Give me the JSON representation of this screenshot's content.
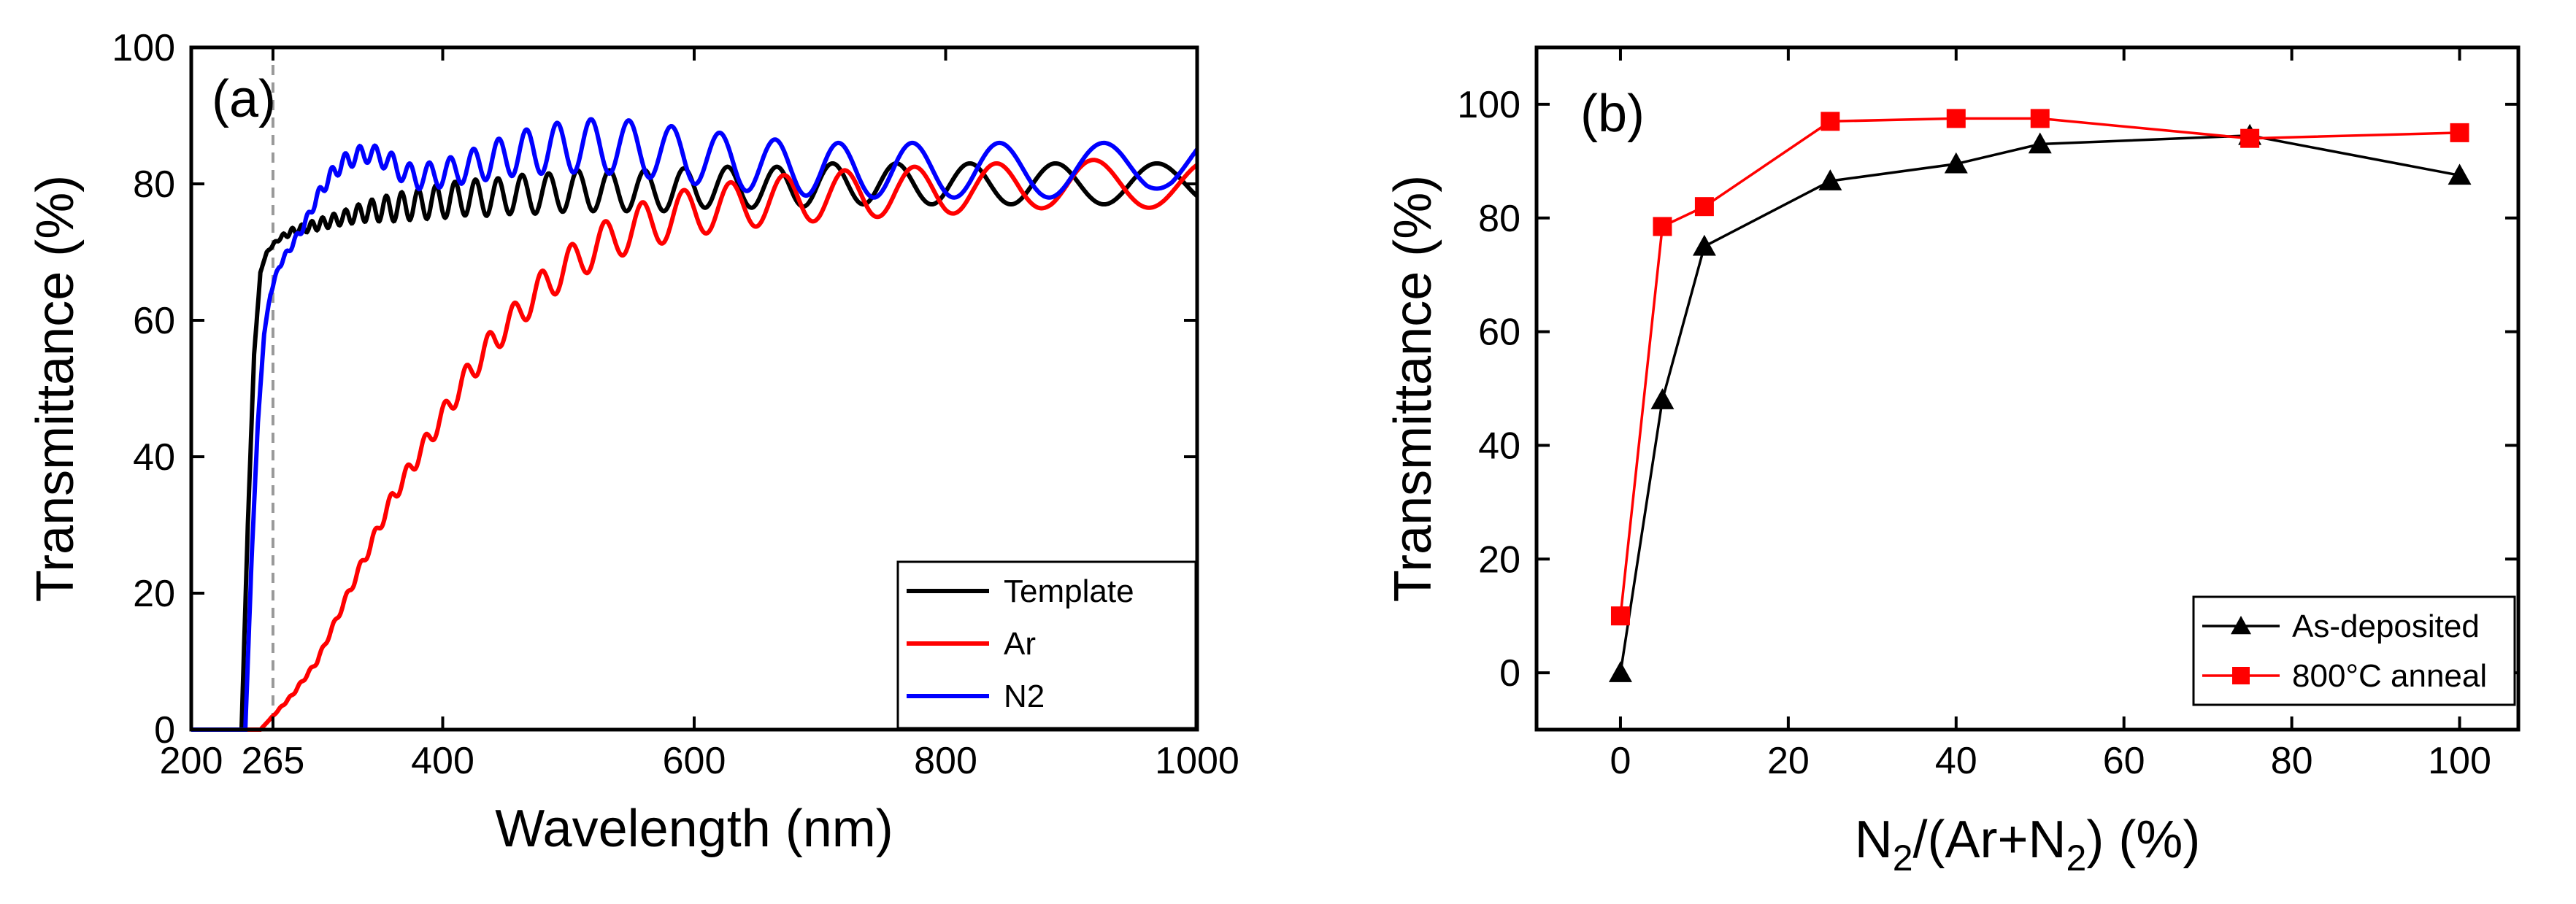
{
  "chart_data": [
    {
      "id": "a",
      "type": "line",
      "panel_label": "(a)",
      "xlabel": "Wavelength (nm)",
      "ylabel": "Transmittance (%)",
      "xlim": [
        200,
        1000
      ],
      "ylim": [
        0,
        100
      ],
      "xticks": [
        200,
        265,
        400,
        600,
        800,
        1000
      ],
      "xtick_labels": [
        "200",
        "265",
        "400",
        "600",
        "800",
        "1000"
      ],
      "yticks": [
        0,
        20,
        40,
        60,
        80,
        100
      ],
      "ytick_labels": [
        "0",
        "20",
        "40",
        "60",
        "80",
        "100"
      ],
      "reference_line": {
        "x": 265,
        "style": "dashed",
        "color": "#999999"
      },
      "legend_position": "bottom-right",
      "series": [
        {
          "name": "Template",
          "color": "#000000",
          "x": [
            200,
            240,
            245,
            250,
            255,
            260,
            265,
            270,
            280,
            300,
            320,
            340,
            360,
            380,
            400,
            420,
            440,
            460,
            480,
            500,
            520,
            540,
            560,
            580,
            600,
            620,
            640,
            660,
            680,
            700,
            720,
            740,
            760,
            780,
            800,
            820,
            840,
            860,
            880,
            900,
            920,
            940,
            960,
            980,
            1000
          ],
          "y": [
            0,
            0,
            30,
            55,
            67,
            70,
            71,
            72,
            73,
            74,
            75,
            76,
            76.5,
            77,
            77.5,
            78,
            78,
            78.5,
            78.5,
            79,
            79,
            79,
            79,
            79,
            79.5,
            79.5,
            79.5,
            79.5,
            79.5,
            80,
            80,
            80,
            80,
            80,
            80,
            80,
            80,
            80,
            80,
            80,
            80,
            80,
            80,
            80,
            80
          ],
          "amplitude": [
            0,
            0,
            0,
            0,
            0,
            0,
            0.2,
            0.3,
            0.5,
            0.8,
            1,
            1.5,
            2,
            2.2,
            2.5,
            2.6,
            2.7,
            2.8,
            2.9,
            3,
            3,
            3,
            3,
            3,
            3,
            3,
            3,
            3,
            3,
            3,
            3,
            3,
            3,
            3,
            3,
            3,
            3,
            3,
            3,
            3,
            3,
            3,
            3,
            3,
            3
          ],
          "period_at_400": 15
        },
        {
          "name": "Ar",
          "color": "#ff0000",
          "x": [
            200,
            255,
            260,
            270,
            280,
            300,
            320,
            340,
            360,
            380,
            400,
            420,
            440,
            460,
            480,
            500,
            520,
            540,
            560,
            580,
            600,
            620,
            640,
            660,
            680,
            700,
            720,
            740,
            760,
            780,
            800,
            820,
            840,
            860,
            880,
            900,
            920,
            940,
            960,
            980,
            1000
          ],
          "y": [
            0,
            0,
            1,
            3,
            5,
            10,
            18,
            26,
            34,
            40,
            46,
            52,
            57,
            61,
            65,
            68,
            70.5,
            72.5,
            74,
            75,
            76,
            76.5,
            77,
            77.5,
            78,
            78,
            78.5,
            78.5,
            79,
            79,
            79,
            79.5,
            79.5,
            79.5,
            80,
            80,
            80,
            80,
            80,
            80,
            80
          ],
          "amplitude": [
            0,
            0,
            0,
            0.1,
            0.2,
            0.3,
            0.5,
            0.8,
            1,
            1.3,
            1.5,
            1.8,
            2,
            2.2,
            2.5,
            2.8,
            3,
            3.2,
            3.4,
            3.5,
            3.5,
            3.5,
            3.5,
            3.5,
            3.5,
            3.5,
            3.5,
            3.5,
            3.5,
            3.5,
            3.5,
            3.5,
            3.5,
            3.5,
            3.5,
            3.5,
            3.5,
            3.5,
            3.5,
            3.5,
            3.5
          ],
          "period_at_400": 16
        },
        {
          "name": "N2",
          "color": "#0000ff",
          "x": [
            200,
            243,
            248,
            253,
            258,
            263,
            270,
            280,
            290,
            300,
            310,
            320,
            330,
            340,
            350,
            360,
            370,
            380,
            400,
            420,
            440,
            460,
            480,
            500,
            520,
            540,
            560,
            580,
            600,
            620,
            640,
            660,
            680,
            700,
            720,
            740,
            760,
            780,
            800,
            820,
            840,
            860,
            880,
            900,
            920,
            940,
            960,
            980,
            1000
          ],
          "y": [
            0,
            0,
            25,
            45,
            58,
            64,
            68,
            71,
            74,
            78,
            81,
            83,
            84,
            84.5,
            84,
            83,
            81.5,
            81,
            81.5,
            82.5,
            83.5,
            84.5,
            85,
            85.5,
            85.5,
            85.5,
            85,
            84.5,
            84,
            83.5,
            83,
            82.5,
            82.5,
            82,
            82,
            82,
            82,
            82,
            82,
            82,
            82,
            82,
            82,
            82,
            82,
            82,
            82,
            83,
            85
          ],
          "amplitude": [
            0,
            0,
            0,
            0,
            0,
            0.3,
            0.4,
            0.5,
            0.6,
            0.8,
            1,
            1.2,
            1.3,
            1.4,
            1.4,
            1.5,
            1.6,
            1.8,
            2,
            2.3,
            2.8,
            3.2,
            3.5,
            3.8,
            4,
            4,
            4,
            4,
            4,
            4,
            4,
            4,
            4,
            4,
            4,
            4,
            4,
            4,
            4,
            4,
            4,
            4,
            4,
            4,
            4,
            4,
            3.5,
            3,
            2.5
          ],
          "period_at_400": 17
        }
      ]
    },
    {
      "id": "b",
      "type": "line",
      "panel_label": "(b)",
      "xlabel_main": "N",
      "xlabel_sub1": "2",
      "xlabel_mid": "/(Ar+N",
      "xlabel_sub2": "2",
      "xlabel_end": ") (%)",
      "ylabel": "Transmittance (%)",
      "xlim": [
        -10,
        107
      ],
      "ylim": [
        -10,
        110
      ],
      "xticks": [
        0,
        20,
        40,
        60,
        80,
        100
      ],
      "xtick_labels": [
        "0",
        "20",
        "40",
        "60",
        "80",
        "100"
      ],
      "yticks": [
        0,
        20,
        40,
        60,
        80,
        100
      ],
      "ytick_labels": [
        "0",
        "20",
        "40",
        "60",
        "80",
        "100"
      ],
      "legend_position": "bottom-right",
      "series": [
        {
          "name": "As-deposited",
          "color": "#000000",
          "marker": "triangle",
          "x": [
            0,
            5,
            10,
            25,
            40,
            50,
            75,
            100
          ],
          "y": [
            0,
            48,
            75,
            86.5,
            89.5,
            93,
            94.5,
            87.5
          ]
        },
        {
          "name": "800°C anneal",
          "color": "#ff0000",
          "marker": "square",
          "x": [
            0,
            5,
            10,
            25,
            40,
            50,
            75,
            100
          ],
          "y": [
            10,
            78.5,
            82,
            97,
            97.5,
            97.5,
            94,
            95
          ]
        }
      ]
    }
  ]
}
